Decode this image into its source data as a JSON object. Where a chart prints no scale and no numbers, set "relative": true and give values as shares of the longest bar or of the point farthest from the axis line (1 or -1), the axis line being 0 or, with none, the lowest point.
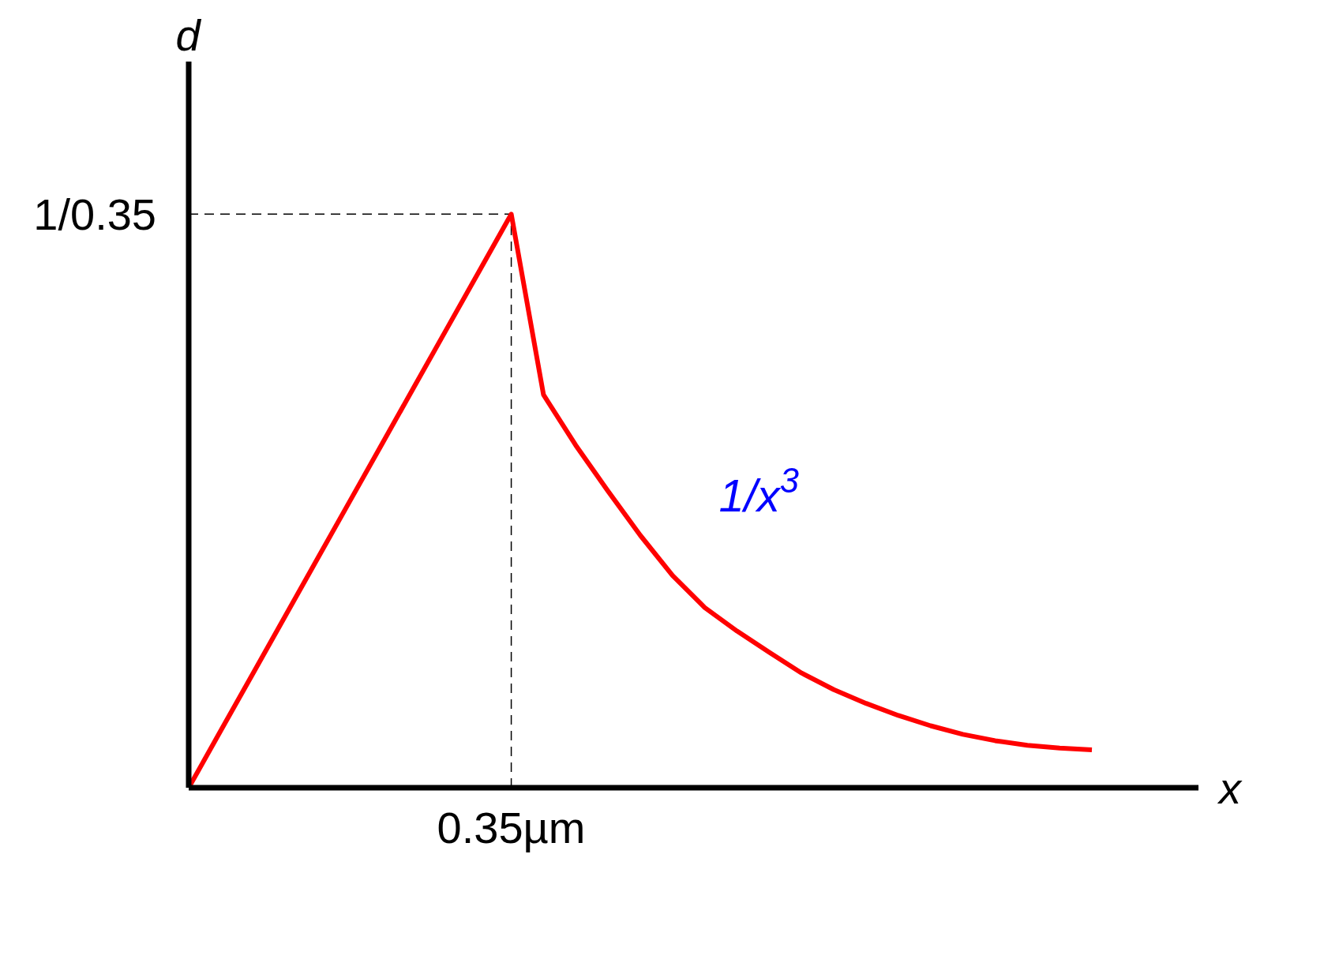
{
  "chart_data": {
    "type": "line",
    "relative": true,
    "xlabel": "x",
    "ylabel": "d",
    "categories": [
      null,
      null,
      null,
      null,
      null,
      null,
      null,
      null,
      null,
      null,
      null,
      null,
      null,
      null,
      null,
      null,
      null,
      null,
      null,
      null,
      null,
      null,
      null,
      null,
      null,
      null,
      null,
      null,
      null
    ],
    "series": [
      {
        "color": "#ff0000",
        "values": [
          0,
          0.1,
          0.2,
          0.3,
          0.4,
          0.5,
          0.6,
          0.7,
          0.8,
          0.9,
          1,
          0.685,
          0.597,
          0.517,
          0.44,
          0.37,
          0.314,
          0.273,
          0.236,
          0.2,
          0.171,
          0.147,
          0.126,
          0.108,
          0.093,
          0.082,
          0.074,
          0.069,
          0.066
        ]
      }
    ],
    "ref_lines": [
      {
        "axis": "y",
        "value": 1,
        "label": "1/0.35",
        "line_style": "dashed"
      },
      {
        "axis": "x",
        "label": "0.35µm",
        "line_style": "dashed"
      }
    ],
    "annotations": [
      "1/x$^{3}$"
    ],
    "marker": "none",
    "line_style": "solid"
  }
}
